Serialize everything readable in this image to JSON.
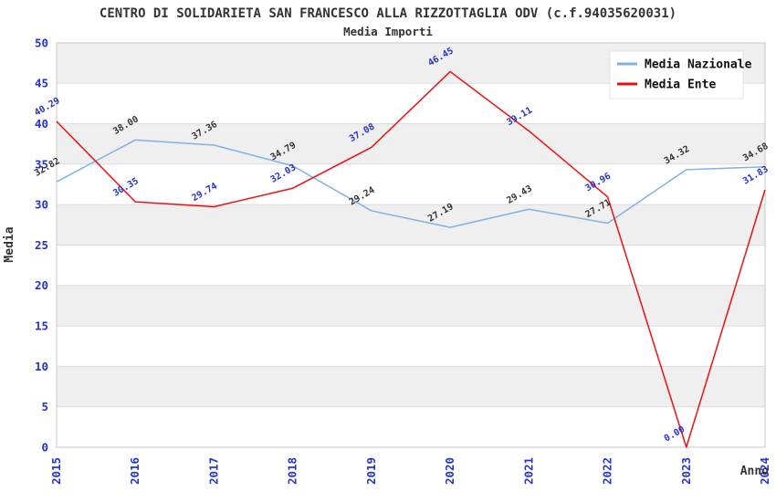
{
  "title": "CENTRO DI SOLIDARIETA SAN FRANCESCO ALLA RIZZOTTAGLIA ODV (c.f.94035620031)",
  "subtitle": "Media Importi",
  "axes": {
    "x_label": "Anno",
    "y_label": "Media",
    "y_ticks": [
      0,
      5,
      10,
      15,
      20,
      25,
      30,
      35,
      40,
      45,
      50
    ],
    "y_range": [
      0,
      50
    ]
  },
  "legend": {
    "position": "top-right",
    "entries": [
      {
        "label": "Media Nazionale",
        "color": "#7FB2E5"
      },
      {
        "label": "Media Ente",
        "color": "#EE1111"
      }
    ]
  },
  "colors": {
    "tick_label": "#2433CC",
    "title_text": "#333333",
    "band_fill": "#EFEFEF",
    "grid_line": "#DBDBDB",
    "plot_border": "#C8C8C8",
    "background": "#FFFFFF",
    "legend_box": "#FFFFFF",
    "legend_border": "#E5E5E5"
  },
  "chart_data": {
    "type": "line",
    "x": [
      2015,
      2016,
      2017,
      2018,
      2019,
      2020,
      2021,
      2022,
      2023,
      2024
    ],
    "series": [
      {
        "name": "Media Nazionale",
        "color": "#7FB2E5",
        "label_color": "#333333",
        "values": [
          32.82,
          38.0,
          37.36,
          34.79,
          29.24,
          27.19,
          29.43,
          27.71,
          34.32,
          34.68
        ]
      },
      {
        "name": "Media Ente",
        "color": "#EE1111",
        "label_color": "#2433CC",
        "values": [
          40.29,
          30.35,
          29.74,
          32.03,
          37.08,
          46.45,
          39.11,
          30.96,
          0.0,
          31.83
        ]
      }
    ],
    "title": "CENTRO DI SOLIDARIETA SAN FRANCESCO ALLA RIZZOTTAGLIA ODV (c.f.94035620031)",
    "subtitle": "Media Importi",
    "xlabel": "Anno",
    "ylabel": "Media",
    "ylim": [
      0,
      50
    ],
    "grid": "horizontal-bands-alternating",
    "legend_position": "top-right",
    "point_labels": "values-2-decimals-rotated"
  }
}
